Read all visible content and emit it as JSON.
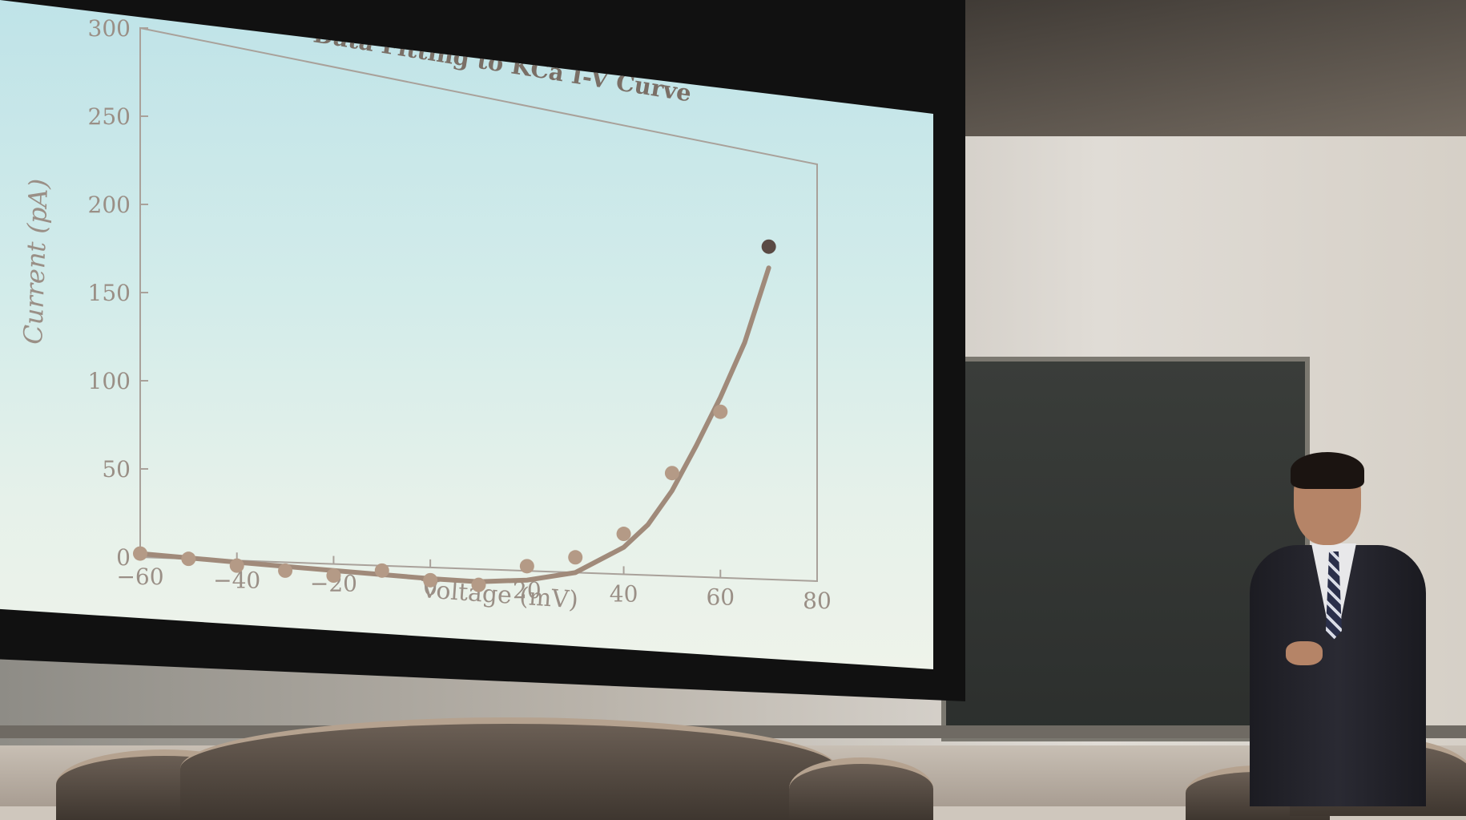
{
  "scene": {
    "description_elements": [
      "projector-screen",
      "blackboard",
      "speaker",
      "chairs"
    ]
  },
  "chart_data": {
    "type": "scatter",
    "title": "Data Fitting to KCa I-V Curve",
    "xlabel": "Voltage (mV)",
    "ylabel": "Current (pA)",
    "xlim": [
      -60,
      80
    ],
    "ylim": [
      0,
      300
    ],
    "x_ticks": [
      "−60",
      "−40",
      "−20",
      "0",
      "20",
      "40",
      "60",
      "80"
    ],
    "y_ticks": [
      "0",
      "50",
      "100",
      "150",
      "200",
      "250",
      "300"
    ],
    "series": [
      {
        "kind": "points",
        "x": [
          -60,
          -50,
          -40,
          -30,
          -20,
          -10,
          0,
          10,
          20,
          30,
          40,
          50,
          60,
          70
        ],
        "y": [
          2,
          0,
          -3,
          -5,
          -7,
          -3,
          -8,
          -10,
          3,
          10,
          27,
          70,
          115,
          235
        ]
      },
      {
        "kind": "fit",
        "x": [
          -60,
          -40,
          -20,
          0,
          10,
          20,
          30,
          40,
          45,
          50,
          55,
          60,
          65,
          70
        ],
        "y": [
          2,
          -1,
          -4,
          -7,
          -8,
          -6,
          0,
          18,
          34,
          58,
          90,
          125,
          165,
          220
        ]
      }
    ],
    "grid": false,
    "colors": {
      "points": "#b49a86",
      "fit": "#a08a7a",
      "text": "#9a8f86",
      "axis": "#a9a19a",
      "last_point": "#5a4a44"
    }
  }
}
